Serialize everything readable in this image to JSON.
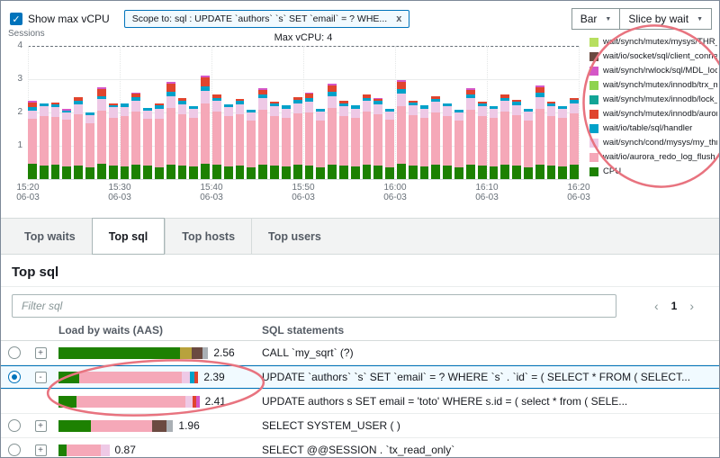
{
  "icons": {
    "check": "✓",
    "caret": "▼",
    "prev": "‹",
    "next": "›"
  },
  "annotations": {
    "color": "#e8737f"
  },
  "topbar": {
    "show_max_vcpu": "Show max vCPU",
    "checkbox_checked": true,
    "scope_chip": "Scope to: sql : UPDATE `authors` `s` SET `email` = ? WHE...",
    "scope_close": "x",
    "chart_type_dropdown": "Bar",
    "slice_dropdown": "Slice by wait"
  },
  "chart_data": {
    "type": "bar",
    "stacked": true,
    "ylabel": "Sessions",
    "max_vcpu_label": "Max vCPU: 4",
    "max_vcpu": 4,
    "ylim": [
      0,
      4
    ],
    "yticks": [
      4,
      3,
      2,
      1
    ],
    "x_ticks": [
      {
        "time": "15:20",
        "date": "06-03"
      },
      {
        "time": "15:30",
        "date": "06-03"
      },
      {
        "time": "15:40",
        "date": "06-03"
      },
      {
        "time": "15:50",
        "date": "06-03"
      },
      {
        "time": "16:00",
        "date": "06-03"
      },
      {
        "time": "16:10",
        "date": "06-03"
      },
      {
        "time": "16:20",
        "date": "06-03"
      }
    ],
    "segment_keys": [
      "CPU",
      "wait/io/aurora_redo_log_flush",
      "wait/synch/cond/mysys/my_thread_var",
      "wait/io/table/sql/handler",
      "wait/synch/mutex/innodb/aurora_lock",
      "wait/synch/rwlock/sql/MDL_lock::rwl"
    ],
    "segment_colors": [
      "#1d8102",
      "#f5a8b8",
      "#eec9e6",
      "#00a1c9",
      "#e0442e",
      "#d457c7"
    ],
    "bars": [
      [
        0.45,
        1.35,
        0.25,
        0.1,
        0.15,
        0.05
      ],
      [
        0.4,
        1.5,
        0.3,
        0.08,
        0.0,
        0.0
      ],
      [
        0.42,
        1.45,
        0.28,
        0.1,
        0.05,
        0.0
      ],
      [
        0.38,
        1.4,
        0.22,
        0.06,
        0.0,
        0.04
      ],
      [
        0.4,
        1.55,
        0.3,
        0.1,
        0.12,
        0.0
      ],
      [
        0.35,
        1.32,
        0.25,
        0.08,
        0.0,
        0.0
      ],
      [
        0.45,
        1.6,
        0.35,
        0.1,
        0.2,
        0.05
      ],
      [
        0.4,
        1.45,
        0.3,
        0.08,
        0.05,
        0.0
      ],
      [
        0.38,
        1.5,
        0.28,
        0.1,
        0.0,
        0.0
      ],
      [
        0.42,
        1.6,
        0.32,
        0.12,
        0.1,
        0.04
      ],
      [
        0.4,
        1.4,
        0.25,
        0.08,
        0.0,
        0.0
      ],
      [
        0.36,
        1.45,
        0.3,
        0.1,
        0.05,
        0.0
      ],
      [
        0.44,
        1.7,
        0.35,
        0.12,
        0.25,
        0.06
      ],
      [
        0.4,
        1.55,
        0.3,
        0.1,
        0.08,
        0.0
      ],
      [
        0.38,
        1.45,
        0.28,
        0.08,
        0.0,
        0.0
      ],
      [
        0.46,
        1.8,
        0.4,
        0.12,
        0.28,
        0.05
      ],
      [
        0.42,
        1.6,
        0.32,
        0.1,
        0.1,
        0.0
      ],
      [
        0.38,
        1.5,
        0.28,
        0.08,
        0.0,
        0.0
      ],
      [
        0.4,
        1.55,
        0.3,
        0.1,
        0.05,
        0.0
      ],
      [
        0.36,
        1.4,
        0.25,
        0.08,
        0.0,
        0.0
      ],
      [
        0.44,
        1.65,
        0.35,
        0.1,
        0.15,
        0.05
      ],
      [
        0.4,
        1.5,
        0.3,
        0.08,
        0.05,
        0.0
      ],
      [
        0.38,
        1.45,
        0.28,
        0.1,
        0.0,
        0.0
      ],
      [
        0.42,
        1.55,
        0.3,
        0.1,
        0.08,
        0.0
      ],
      [
        0.4,
        1.6,
        0.32,
        0.12,
        0.12,
        0.04
      ],
      [
        0.36,
        1.4,
        0.26,
        0.08,
        0.0,
        0.0
      ],
      [
        0.44,
        1.7,
        0.36,
        0.12,
        0.2,
        0.05
      ],
      [
        0.4,
        1.5,
        0.3,
        0.08,
        0.06,
        0.0
      ],
      [
        0.38,
        1.45,
        0.28,
        0.1,
        0.0,
        0.0
      ],
      [
        0.42,
        1.6,
        0.32,
        0.1,
        0.1,
        0.0
      ],
      [
        0.4,
        1.55,
        0.3,
        0.1,
        0.05,
        0.04
      ],
      [
        0.36,
        1.42,
        0.26,
        0.08,
        0.0,
        0.0
      ],
      [
        0.45,
        1.75,
        0.38,
        0.12,
        0.22,
        0.05
      ],
      [
        0.4,
        1.52,
        0.3,
        0.08,
        0.05,
        0.0
      ],
      [
        0.38,
        1.45,
        0.28,
        0.1,
        0.0,
        0.0
      ],
      [
        0.42,
        1.58,
        0.32,
        0.1,
        0.08,
        0.0
      ],
      [
        0.4,
        1.5,
        0.3,
        0.08,
        0.0,
        0.0
      ],
      [
        0.36,
        1.4,
        0.25,
        0.08,
        0.0,
        0.0
      ],
      [
        0.44,
        1.65,
        0.34,
        0.1,
        0.15,
        0.05
      ],
      [
        0.4,
        1.5,
        0.3,
        0.08,
        0.05,
        0.0
      ],
      [
        0.38,
        1.45,
        0.28,
        0.08,
        0.0,
        0.0
      ],
      [
        0.42,
        1.6,
        0.32,
        0.1,
        0.1,
        0.0
      ],
      [
        0.4,
        1.52,
        0.3,
        0.1,
        0.05,
        0.0
      ],
      [
        0.36,
        1.4,
        0.26,
        0.08,
        0.0,
        0.0
      ],
      [
        0.44,
        1.68,
        0.35,
        0.12,
        0.18,
        0.05
      ],
      [
        0.4,
        1.5,
        0.3,
        0.08,
        0.05,
        0.0
      ],
      [
        0.38,
        1.45,
        0.28,
        0.08,
        0.0,
        0.0
      ],
      [
        0.42,
        1.55,
        0.3,
        0.1,
        0.06,
        0.0
      ]
    ]
  },
  "legend": {
    "items": [
      {
        "label": "wait/synch/mutex/mysys/THR_LOCK::mu",
        "color": "#b7df5f"
      },
      {
        "label": "wait/io/socket/sql/client_connectio",
        "color": "#6b4a41"
      },
      {
        "label": "wait/synch/rwlock/sql/MDL_lock::rwl",
        "color": "#d457c7"
      },
      {
        "label": "wait/synch/mutex/innodb/trx_mutex",
        "color": "#8ed34f"
      },
      {
        "label": "wait/synch/mutex/innodb/lock_wait_m",
        "color": "#12a596"
      },
      {
        "label": "wait/synch/mutex/innodb/aurora_lock",
        "color": "#e0442e"
      },
      {
        "label": "wait/io/table/sql/handler",
        "color": "#00a1c9"
      },
      {
        "label": "wait/synch/cond/mysys/my_thread_var",
        "color": "#eec9e6"
      },
      {
        "label": "wait/io/aurora_redo_log_flush",
        "color": "#f5a8b8"
      },
      {
        "label": "CPU",
        "color": "#1d8102"
      }
    ]
  },
  "tabs": [
    {
      "id": "top-waits",
      "label": "Top waits",
      "active": false
    },
    {
      "id": "top-sql",
      "label": "Top sql",
      "active": true
    },
    {
      "id": "top-hosts",
      "label": "Top hosts",
      "active": false
    },
    {
      "id": "top-users",
      "label": "Top users",
      "active": false
    }
  ],
  "panel": {
    "title": "Top sql",
    "filter_placeholder": "Filter sql",
    "page": "1"
  },
  "table": {
    "columns": [
      "Load by waits (AAS)",
      "SQL statements"
    ],
    "bar_colors": {
      "cpu": "#1d8102",
      "redo": "#f5a8b8",
      "lav": "#eec9e6",
      "teal": "#00a1c9",
      "red": "#e0442e",
      "magenta": "#d457c7",
      "brown": "#6b4a41",
      "olive": "#b8a23c",
      "gray": "#aab0b5"
    },
    "rows": [
      {
        "radio": "off",
        "expand": "+",
        "value": "2.56",
        "sql": "CALL `my_sqrt` (?)",
        "segments": [
          [
            "cpu",
            2.08
          ],
          [
            "olive",
            0.2
          ],
          [
            "brown",
            0.18
          ],
          [
            "gray",
            0.1
          ]
        ],
        "selected": false,
        "child": false,
        "dotted": false
      },
      {
        "radio": "on",
        "expand": "-",
        "value": "2.39",
        "sql": "UPDATE `authors` `s` SET `email` = ? WHERE `s` . `id` = ( SELECT * FROM ( SELECT...",
        "segments": [
          [
            "cpu",
            0.35
          ],
          [
            "redo",
            1.76
          ],
          [
            "lav",
            0.13
          ],
          [
            "teal",
            0.08
          ],
          [
            "red",
            0.07
          ]
        ],
        "selected": true,
        "child": false,
        "dotted": true
      },
      {
        "radio": "none",
        "expand": "",
        "value": "2.41",
        "sql": "UPDATE authors s SET email = 'toto' WHERE s.id = ( select * from ( SELE...",
        "segments": [
          [
            "cpu",
            0.3
          ],
          [
            "redo",
            1.87
          ],
          [
            "lav",
            0.12
          ],
          [
            "red",
            0.06
          ],
          [
            "magenta",
            0.06
          ]
        ],
        "selected": false,
        "child": true,
        "dotted": false
      },
      {
        "radio": "off",
        "expand": "+",
        "value": "1.96",
        "sql": "SELECT SYSTEM_USER ( )",
        "segments": [
          [
            "cpu",
            0.55
          ],
          [
            "redo",
            1.05
          ],
          [
            "brown",
            0.24
          ],
          [
            "gray",
            0.12
          ]
        ],
        "selected": false,
        "child": false,
        "dotted": false
      },
      {
        "radio": "off",
        "expand": "+",
        "value": "0.87",
        "sql": "SELECT @@SESSION . `tx_read_only`",
        "segments": [
          [
            "cpu",
            0.14
          ],
          [
            "redo",
            0.58
          ],
          [
            "lav",
            0.15
          ]
        ],
        "selected": false,
        "child": false,
        "dotted": false
      }
    ]
  }
}
